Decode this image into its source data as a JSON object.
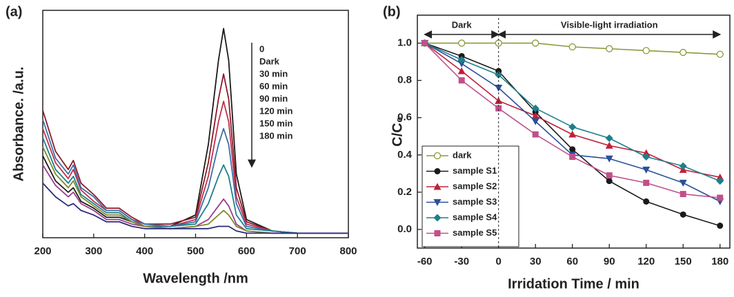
{
  "chart_data": [
    {
      "type": "line",
      "panel": "(a)",
      "xlabel": "Wavelength /nm",
      "ylabel": "Absorbance. /a.u.",
      "x": [
        200,
        225,
        250,
        260,
        275,
        300,
        325,
        350,
        375,
        400,
        450,
        500,
        525,
        545,
        555,
        565,
        580,
        600,
        650,
        700,
        800
      ],
      "xlim": [
        200,
        800
      ],
      "xticks": [
        200,
        300,
        400,
        500,
        600,
        700,
        800
      ],
      "ylim": [
        0,
        1
      ],
      "series": [
        {
          "name": "0",
          "color": "#1a1a1a",
          "values": [
            0.36,
            0.25,
            0.2,
            0.22,
            0.16,
            0.13,
            0.09,
            0.09,
            0.07,
            0.05,
            0.05,
            0.1,
            0.41,
            0.78,
            0.92,
            0.78,
            0.28,
            0.08,
            0.03,
            0.02,
            0.02
          ]
        },
        {
          "name": "Dark",
          "color": "#8b1a2b",
          "values": [
            0.56,
            0.38,
            0.3,
            0.34,
            0.24,
            0.19,
            0.13,
            0.13,
            0.09,
            0.06,
            0.06,
            0.09,
            0.33,
            0.61,
            0.72,
            0.61,
            0.22,
            0.07,
            0.03,
            0.02,
            0.02
          ]
        },
        {
          "name": "30 min",
          "color": "#c0304a",
          "values": [
            0.48,
            0.33,
            0.26,
            0.3,
            0.21,
            0.16,
            0.12,
            0.12,
            0.08,
            0.05,
            0.05,
            0.08,
            0.27,
            0.51,
            0.6,
            0.51,
            0.18,
            0.06,
            0.03,
            0.02,
            0.02
          ]
        },
        {
          "name": "60 min",
          "color": "#3a6fa8",
          "values": [
            0.52,
            0.35,
            0.28,
            0.32,
            0.22,
            0.18,
            0.12,
            0.12,
            0.08,
            0.06,
            0.05,
            0.07,
            0.22,
            0.41,
            0.48,
            0.41,
            0.15,
            0.05,
            0.03,
            0.02,
            0.02
          ]
        },
        {
          "name": "90 min",
          "color": "#1e7f8a",
          "values": [
            0.44,
            0.3,
            0.24,
            0.27,
            0.19,
            0.15,
            0.11,
            0.11,
            0.07,
            0.05,
            0.05,
            0.06,
            0.15,
            0.27,
            0.32,
            0.27,
            0.1,
            0.04,
            0.03,
            0.02,
            0.02
          ]
        },
        {
          "name": "120 min",
          "color": "#9b3c8c",
          "values": [
            0.32,
            0.23,
            0.18,
            0.2,
            0.15,
            0.12,
            0.08,
            0.08,
            0.06,
            0.05,
            0.04,
            0.05,
            0.08,
            0.14,
            0.17,
            0.14,
            0.06,
            0.03,
            0.02,
            0.02,
            0.02
          ]
        },
        {
          "name": "150 min",
          "color": "#7a8a2a",
          "values": [
            0.4,
            0.28,
            0.22,
            0.25,
            0.18,
            0.14,
            0.1,
            0.1,
            0.07,
            0.05,
            0.04,
            0.05,
            0.06,
            0.1,
            0.12,
            0.1,
            0.05,
            0.03,
            0.02,
            0.02,
            0.02
          ]
        },
        {
          "name": "180 min",
          "color": "#2a2a7a",
          "values": [
            0.24,
            0.18,
            0.14,
            0.15,
            0.12,
            0.1,
            0.07,
            0.07,
            0.05,
            0.04,
            0.04,
            0.04,
            0.04,
            0.05,
            0.05,
            0.05,
            0.03,
            0.02,
            0.02,
            0.02,
            0.02
          ]
        }
      ]
    },
    {
      "type": "line",
      "panel": "(b)",
      "xlabel": "Irridation Time / min",
      "ylabel": "C/C₀",
      "annotations": [
        "Dark",
        "Visible-light irradiation"
      ],
      "x": [
        -60,
        -30,
        0,
        30,
        60,
        90,
        120,
        150,
        180
      ],
      "xlim": [
        -66,
        188
      ],
      "xticks": [
        -60,
        -30,
        0,
        30,
        60,
        90,
        120,
        150,
        180
      ],
      "ylim": [
        -0.1,
        1.15
      ],
      "yticks": [
        {
          "value": 0,
          "label": "0.0"
        },
        0.2,
        0.4,
        0.6,
        0.8,
        {
          "value": 1,
          "label": "1.0"
        }
      ],
      "series": [
        {
          "name": "dark",
          "color": "#8a9a3a",
          "marker": "circle-open",
          "values": [
            1.0,
            1.0,
            1.0,
            1.0,
            0.98,
            0.97,
            0.96,
            0.95,
            0.94
          ]
        },
        {
          "name": "sample S1",
          "color": "#1a1a1a",
          "marker": "circle",
          "values": [
            1.0,
            0.93,
            0.85,
            0.63,
            0.43,
            0.26,
            0.15,
            0.08,
            0.02
          ]
        },
        {
          "name": "sample S2",
          "color": "#c0203a",
          "marker": "triangle-up",
          "values": [
            1.0,
            0.85,
            0.69,
            0.61,
            0.51,
            0.45,
            0.41,
            0.32,
            0.28
          ]
        },
        {
          "name": "sample S3",
          "color": "#2a4f9a",
          "marker": "triangle-down",
          "values": [
            1.0,
            0.89,
            0.76,
            0.58,
            0.4,
            0.38,
            0.32,
            0.25,
            0.15
          ]
        },
        {
          "name": "sample S4",
          "color": "#1e7f8a",
          "marker": "diamond",
          "values": [
            1.0,
            0.91,
            0.83,
            0.65,
            0.55,
            0.49,
            0.39,
            0.34,
            0.26
          ]
        },
        {
          "name": "sample S5",
          "color": "#c0508a",
          "marker": "square",
          "values": [
            1.0,
            0.8,
            0.65,
            0.51,
            0.39,
            0.29,
            0.25,
            0.19,
            0.17
          ]
        }
      ]
    }
  ]
}
